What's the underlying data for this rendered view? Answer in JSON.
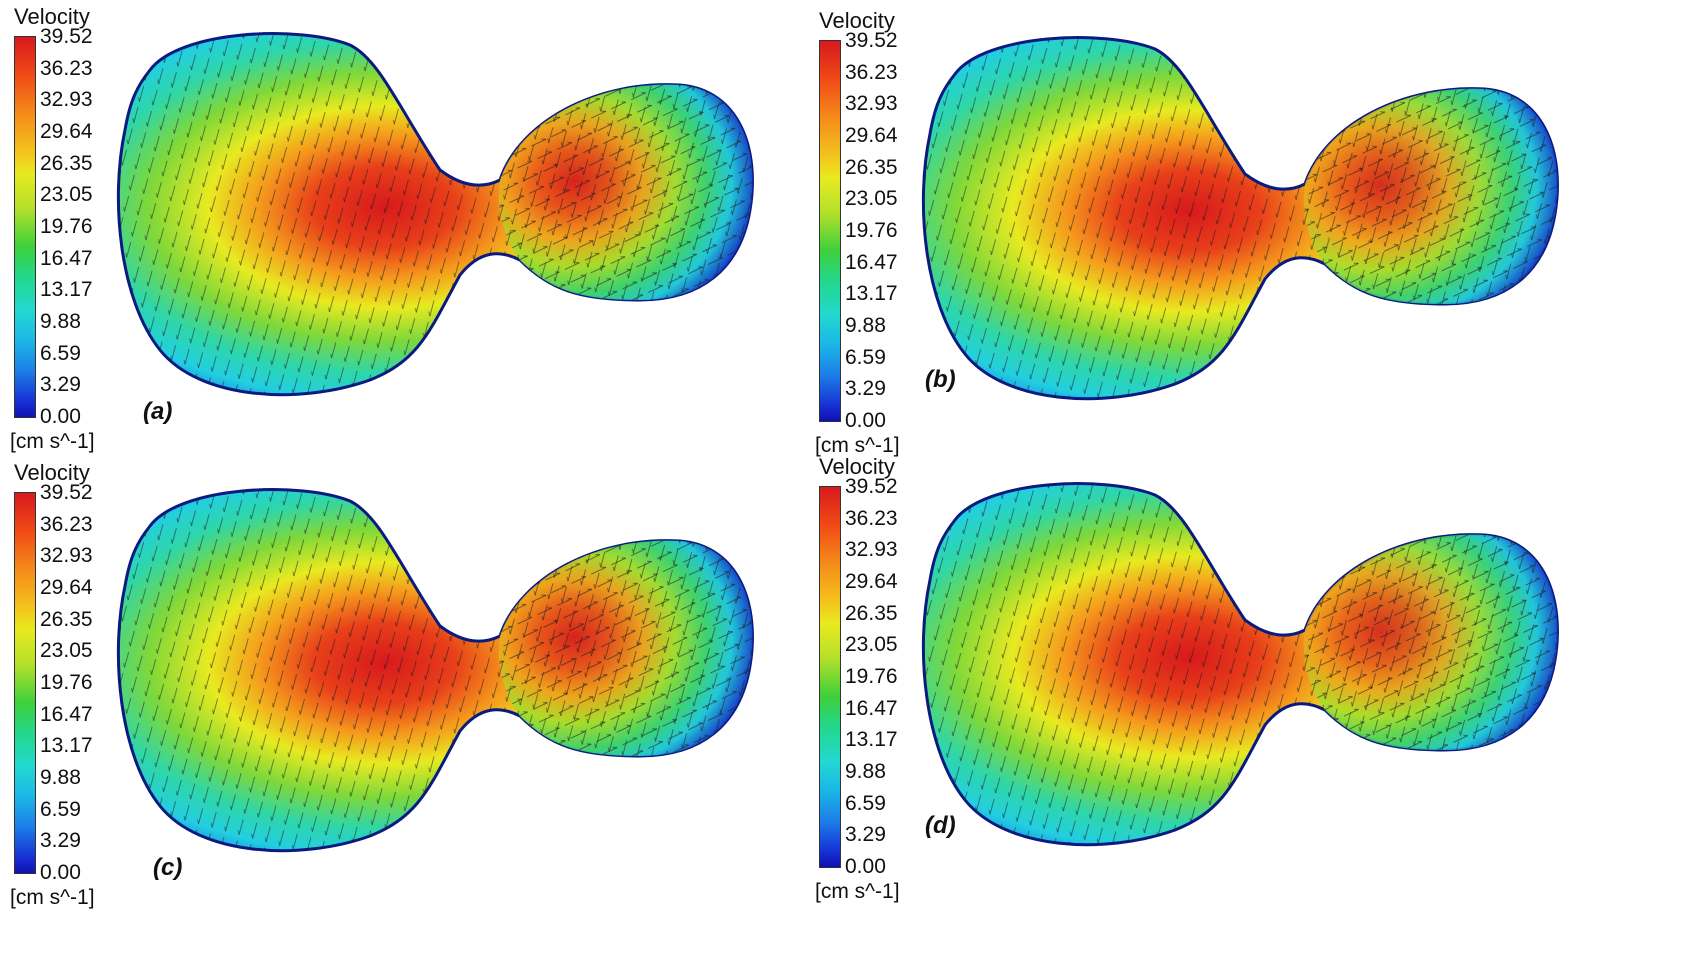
{
  "legend": {
    "title": "Velocity",
    "unit": "[cm s^-1]",
    "ticks": [
      "39.52",
      "36.23",
      "32.93",
      "29.64",
      "26.35",
      "23.05",
      "19.76",
      "16.47",
      "13.17",
      "9.88",
      "6.59",
      "3.29",
      "0.00"
    ]
  },
  "panels": [
    {
      "label": "(a)"
    },
    {
      "label": "(b)"
    },
    {
      "label": "(c)"
    },
    {
      "label": "(d)"
    }
  ],
  "colors": {
    "max": "#d7191c",
    "mid": "#e8ea20",
    "low": "#22d9d0",
    "min": "#1010b0"
  }
}
